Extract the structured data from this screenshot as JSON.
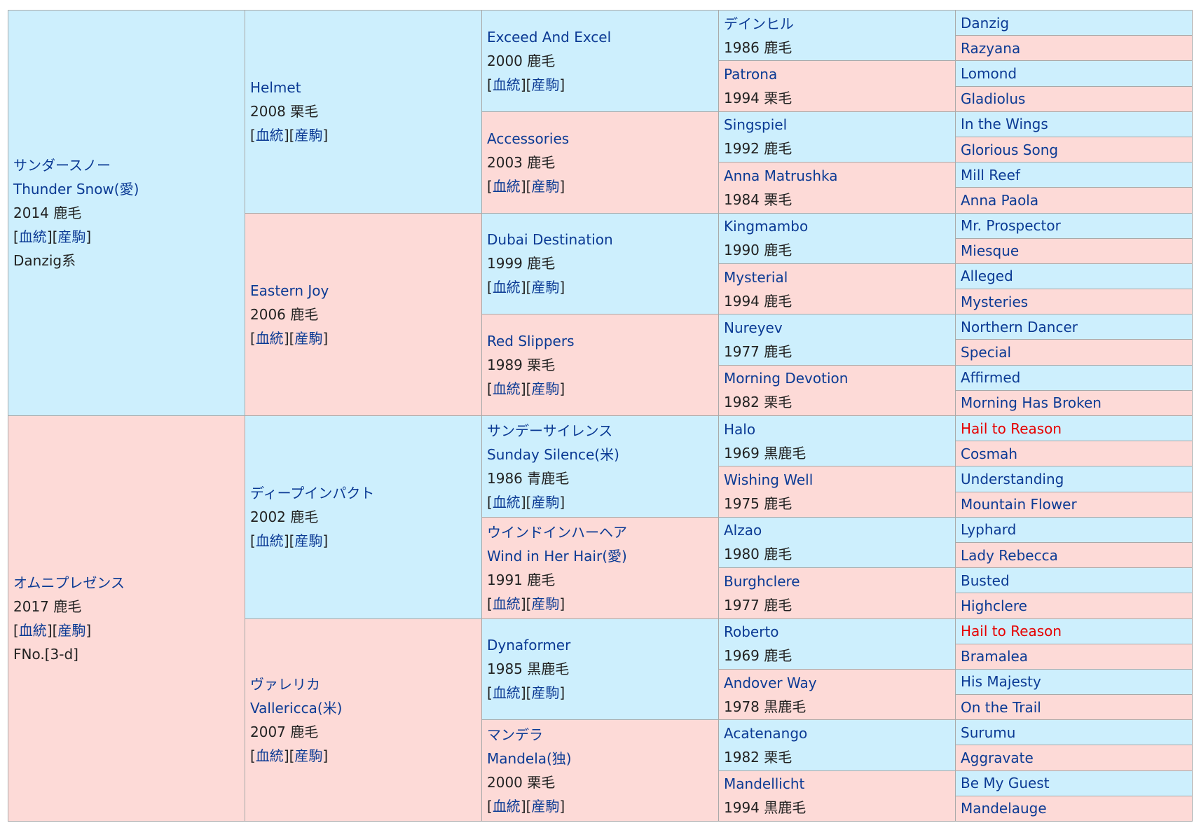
{
  "colors": {
    "sire_bg": "#cdeffd",
    "dam_bg": "#fddad7",
    "name": "#0b3a94",
    "highlight": "#e60000",
    "text": "#222222",
    "border": "#a9a9a9"
  },
  "labels": {
    "pedigree": "血統",
    "progeny": "産駒"
  },
  "gen1": [
    {
      "name_jp": "サンダースノー",
      "name_en": "Thunder Snow(愛)",
      "info": "2014 鹿毛",
      "line": "Danzig系"
    },
    {
      "name_jp": "オムニプレゼンス",
      "info": "2017 鹿毛",
      "family": "FNo.[3-d]"
    }
  ],
  "gen2": [
    {
      "name": "Helmet",
      "info": "2008 栗毛"
    },
    {
      "name": "Eastern Joy",
      "info": "2006 鹿毛"
    },
    {
      "name": "ディープインパクト",
      "info": "2002 鹿毛"
    },
    {
      "name_jp": "ヴァレリカ",
      "name_en": "Vallericca(米)",
      "info": "2007 鹿毛"
    }
  ],
  "gen3": [
    {
      "name": "Exceed And Excel",
      "info": "2000 鹿毛"
    },
    {
      "name": "Accessories",
      "info": "2003 鹿毛"
    },
    {
      "name": "Dubai Destination",
      "info": "1999 鹿毛"
    },
    {
      "name": "Red Slippers",
      "info": "1989 栗毛"
    },
    {
      "name_jp": "サンデーサイレンス",
      "name_en": "Sunday Silence(米)",
      "info": "1986 青鹿毛"
    },
    {
      "name_jp": "ウインドインハーヘア",
      "name_en": "Wind in Her Hair(愛)",
      "info": "1991 鹿毛"
    },
    {
      "name": "Dynaformer",
      "info": "1985 黒鹿毛"
    },
    {
      "name_jp": "マンデラ",
      "name_en": "Mandela(独)",
      "info": "2000 栗毛"
    }
  ],
  "gen4": [
    {
      "name": "デインヒル",
      "info": "1986 鹿毛"
    },
    {
      "name": "Patrona",
      "info": "1994 栗毛"
    },
    {
      "name": "Singspiel",
      "info": "1992 鹿毛"
    },
    {
      "name": "Anna Matrushka",
      "info": "1984 栗毛"
    },
    {
      "name": "Kingmambo",
      "info": "1990 鹿毛"
    },
    {
      "name": "Mysterial",
      "info": "1994 鹿毛"
    },
    {
      "name": "Nureyev",
      "info": "1977 鹿毛"
    },
    {
      "name": "Morning Devotion",
      "info": "1982 栗毛"
    },
    {
      "name": "Halo",
      "info": "1969 黒鹿毛"
    },
    {
      "name": "Wishing Well",
      "info": "1975 鹿毛"
    },
    {
      "name": "Alzao",
      "info": "1980 鹿毛"
    },
    {
      "name": "Burghclere",
      "info": "1977 鹿毛"
    },
    {
      "name": "Roberto",
      "info": "1969 鹿毛"
    },
    {
      "name": "Andover Way",
      "info": "1978 黒鹿毛"
    },
    {
      "name": "Acatenango",
      "info": "1982 栗毛"
    },
    {
      "name": "Mandellicht",
      "info": "1994 黒鹿毛"
    }
  ],
  "gen5": [
    {
      "name": "Danzig"
    },
    {
      "name": "Razyana"
    },
    {
      "name": "Lomond"
    },
    {
      "name": "Gladiolus"
    },
    {
      "name": "In the Wings"
    },
    {
      "name": "Glorious Song"
    },
    {
      "name": "Mill Reef"
    },
    {
      "name": "Anna Paola"
    },
    {
      "name": "Mr. Prospector"
    },
    {
      "name": "Miesque"
    },
    {
      "name": "Alleged"
    },
    {
      "name": "Mysteries"
    },
    {
      "name": "Northern Dancer"
    },
    {
      "name": "Special"
    },
    {
      "name": "Affirmed"
    },
    {
      "name": "Morning Has Broken"
    },
    {
      "name": "Hail to Reason",
      "highlight": true
    },
    {
      "name": "Cosmah"
    },
    {
      "name": "Understanding"
    },
    {
      "name": "Mountain Flower"
    },
    {
      "name": "Lyphard"
    },
    {
      "name": "Lady Rebecca"
    },
    {
      "name": "Busted"
    },
    {
      "name": "Highclere"
    },
    {
      "name": "Hail to Reason",
      "highlight": true
    },
    {
      "name": "Bramalea"
    },
    {
      "name": "His Majesty"
    },
    {
      "name": "On the Trail"
    },
    {
      "name": "Surumu"
    },
    {
      "name": "Aggravate"
    },
    {
      "name": "Be My Guest"
    },
    {
      "name": "Mandelauge"
    }
  ]
}
